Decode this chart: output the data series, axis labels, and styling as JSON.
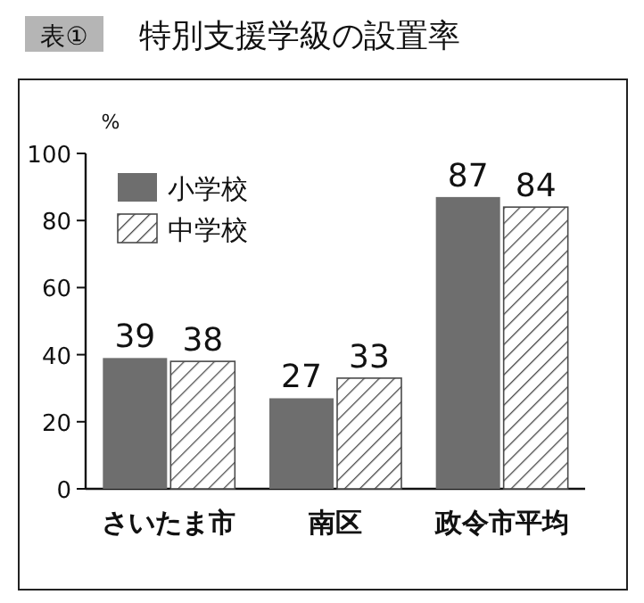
{
  "chart_data": {
    "type": "bar",
    "title": "特別支援学級の設置率",
    "annotations": [
      "表①"
    ],
    "ylabel": "%",
    "categories": [
      "さいたま市",
      "南区",
      "政令市平均"
    ],
    "series": [
      {
        "name": "小学校",
        "color": "#6e6e6e",
        "values": [
          39,
          27,
          87
        ]
      },
      {
        "name": "中学校",
        "color": "#4a4a4a",
        "values": [
          38,
          33,
          84
        ]
      }
    ],
    "ylim": [
      0,
      100
    ],
    "yticks": [
      0,
      20,
      40,
      60,
      80,
      100
    ],
    "data_labels": true,
    "legend": "top left",
    "grid": false
  }
}
